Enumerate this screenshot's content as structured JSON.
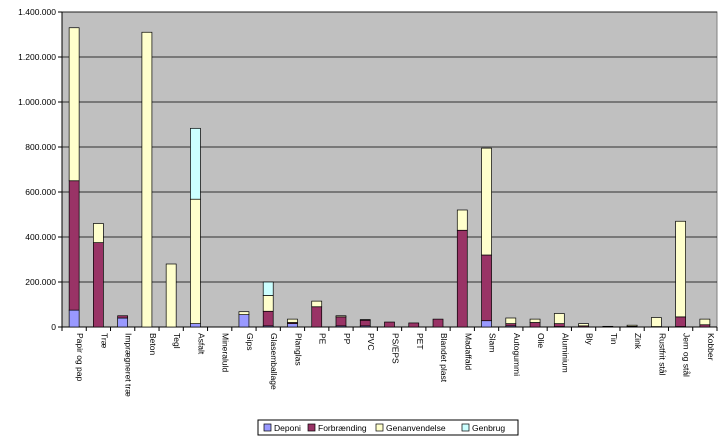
{
  "chart_data": {
    "type": "bar",
    "stacked": true,
    "categories": [
      "Papir og pap",
      "Træ",
      "Imprægneret træ",
      "Beton",
      "Tegl",
      "Asfalt",
      "Mineraluld",
      "Gips",
      "Glasemballage",
      "Planglas",
      "PE",
      "PP",
      "PVC",
      "PS/EPS",
      "PET",
      "Blandet plast",
      "Madaffald",
      "Slam",
      "Autogummi",
      "Olie",
      "Aluminium",
      "Bly",
      "Tin",
      "Zink",
      "Rustfrit stål",
      "Jern og stål",
      "Kobber"
    ],
    "series": [
      {
        "name": "Deponi",
        "color": "#9999ff",
        "values": [
          75000,
          0,
          40000,
          0,
          0,
          15000,
          0,
          55000,
          5000,
          15000,
          0,
          5000,
          5000,
          0,
          0,
          0,
          0,
          28000,
          5000,
          0,
          2000,
          0,
          0,
          0,
          0,
          2000,
          0
        ]
      },
      {
        "name": "Forbrænding",
        "color": "#993366",
        "values": [
          575000,
          375000,
          10000,
          0,
          0,
          0,
          0,
          0,
          65000,
          5000,
          90000,
          40000,
          25000,
          22000,
          18000,
          35000,
          430000,
          292000,
          10000,
          20000,
          13000,
          5000,
          3000,
          3000,
          2000,
          43000,
          10000
        ]
      },
      {
        "name": "Genanvendelse",
        "color": "#ffffcc",
        "values": [
          680000,
          85000,
          0,
          1310000,
          280000,
          553000,
          0,
          13000,
          70000,
          15000,
          25000,
          5000,
          3000,
          0,
          0,
          0,
          90000,
          475000,
          25000,
          15000,
          45000,
          10000,
          0,
          5000,
          40000,
          425000,
          25000
        ]
      },
      {
        "name": "Genbrug",
        "color": "#ccffff",
        "values": [
          0,
          0,
          0,
          0,
          0,
          315000,
          0,
          0,
          60000,
          0,
          0,
          0,
          0,
          0,
          0,
          0,
          0,
          0,
          0,
          0,
          0,
          0,
          0,
          0,
          0,
          0,
          0
        ]
      }
    ],
    "ylim": [
      0,
      1400000
    ],
    "yticks": [
      0,
      200000,
      400000,
      600000,
      800000,
      1000000,
      1200000,
      1400000
    ],
    "ytick_labels": [
      "0",
      "200.000",
      "400.000",
      "600.000",
      "800.000",
      "1.000.000",
      "1.200.000",
      "1.400.000"
    ],
    "grid": true,
    "legend_position": "bottom",
    "plot_background": "#c0c0c0"
  }
}
